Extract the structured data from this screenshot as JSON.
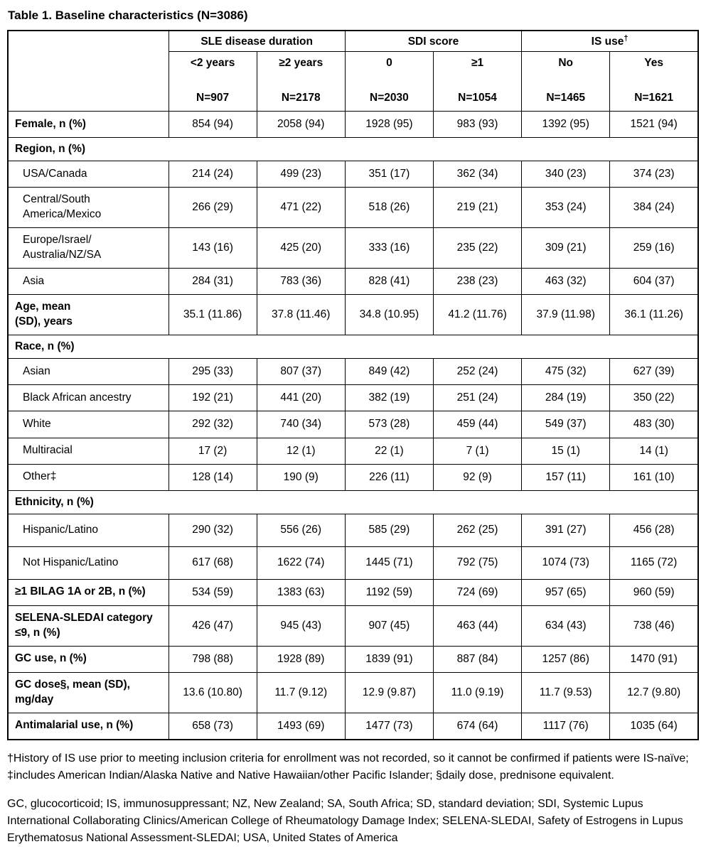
{
  "page": {
    "title": "Table 1. Baseline characteristics (N=3086)"
  },
  "table": {
    "col_groups": [
      {
        "label": "SLE disease duration",
        "sup": ""
      },
      {
        "label": "SDI score",
        "sup": ""
      },
      {
        "label": "IS use",
        "sup": "†"
      }
    ],
    "columns": [
      {
        "sub": "<2 years",
        "n": "N=907"
      },
      {
        "sub": "≥2 years",
        "n": "N=2178"
      },
      {
        "sub": "0",
        "n": "N=2030"
      },
      {
        "sub": "≥1",
        "n": "N=1054"
      },
      {
        "sub": "No",
        "n": "N=1465"
      },
      {
        "sub": "Yes",
        "n": "N=1621"
      }
    ],
    "rows": [
      {
        "label": "Female, n (%)",
        "bold": true,
        "values": [
          "854 (94)",
          "2058 (94)",
          "1928 (95)",
          "983 (93)",
          "1392 (95)",
          "1521 (94)"
        ]
      },
      {
        "label": "Region, n (%)",
        "section": true
      },
      {
        "label": "USA/Canada",
        "indent": true,
        "values": [
          "214 (24)",
          "499 (23)",
          "351 (17)",
          "362 (34)",
          "340 (23)",
          "374 (23)"
        ]
      },
      {
        "label": "Central/South\nAmerica/Mexico",
        "indent": true,
        "values": [
          "266 (29)",
          "471 (22)",
          "518 (26)",
          "219 (21)",
          "353 (24)",
          "384 (24)"
        ]
      },
      {
        "label": "Europe/Israel/\nAustralia/NZ/SA",
        "indent": true,
        "values": [
          "143 (16)",
          "425 (20)",
          "333 (16)",
          "235 (22)",
          "309 (21)",
          "259 (16)"
        ]
      },
      {
        "label": "Asia",
        "indent": true,
        "values": [
          "284 (31)",
          "783 (36)",
          "828 (41)",
          "238 (23)",
          "463 (32)",
          "604 (37)"
        ]
      },
      {
        "label": "Age, mean\n(SD), years",
        "bold": true,
        "values": [
          "35.1 (11.86)",
          "37.8 (11.46)",
          "34.8 (10.95)",
          "41.2 (11.76)",
          "37.9 (11.98)",
          "36.1 (11.26)"
        ]
      },
      {
        "label": "Race, n (%)",
        "section": true
      },
      {
        "label": "Asian",
        "indent": true,
        "values": [
          "295 (33)",
          "807 (37)",
          "849 (42)",
          "252 (24)",
          "475 (32)",
          "627 (39)"
        ]
      },
      {
        "label": "Black African ancestry",
        "indent": true,
        "values": [
          "192 (21)",
          "441 (20)",
          "382 (19)",
          "251 (24)",
          "284 (19)",
          "350 (22)"
        ]
      },
      {
        "label": "White",
        "indent": true,
        "values": [
          "292 (32)",
          "740 (34)",
          "573 (28)",
          "459 (44)",
          "549 (37)",
          "483 (30)"
        ]
      },
      {
        "label": "Multiracial",
        "indent": true,
        "values": [
          "17 (2)",
          "12 (1)",
          "22 (1)",
          "7 (1)",
          "15 (1)",
          "14 (1)"
        ]
      },
      {
        "label": "Other‡",
        "indent": true,
        "values": [
          "128 (14)",
          "190 (9)",
          "226 (11)",
          "92 (9)",
          "157 (11)",
          "161 (10)"
        ]
      },
      {
        "label": "Ethnicity, n (%)",
        "section": true
      },
      {
        "label": "Hispanic/Latino",
        "indent": true,
        "tall": true,
        "values": [
          "290 (32)",
          "556 (26)",
          "585 (29)",
          "262 (25)",
          "391 (27)",
          "456 (28)"
        ]
      },
      {
        "label": "Not Hispanic/Latino",
        "indent": true,
        "tall": true,
        "values": [
          "617 (68)",
          "1622 (74)",
          "1445 (71)",
          "792 (75)",
          "1074 (73)",
          "1165 (72)"
        ]
      },
      {
        "label": "≥1 BILAG 1A or 2B, n (%)",
        "bold": true,
        "values": [
          "534 (59)",
          "1383 (63)",
          "1192 (59)",
          "724 (69)",
          "957 (65)",
          "960 (59)"
        ]
      },
      {
        "label": "SELENA-SLEDAI category\n≤9, n (%)",
        "bold": true,
        "values": [
          "426 (47)",
          "945 (43)",
          "907 (45)",
          "463 (44)",
          "634 (43)",
          "738 (46)"
        ]
      },
      {
        "label": "GC use, n (%)",
        "bold": true,
        "values": [
          "798 (88)",
          "1928 (89)",
          "1839 (91)",
          "887 (84)",
          "1257 (86)",
          "1470 (91)"
        ]
      },
      {
        "label": "GC dose§, mean (SD),\nmg/day",
        "bold": true,
        "values": [
          "13.6 (10.80)",
          "11.7 (9.12)",
          "12.9 (9.87)",
          "11.0 (9.19)",
          "11.7 (9.53)",
          "12.7 (9.80)"
        ]
      },
      {
        "label": "Antimalarial use, n (%)",
        "bold": true,
        "values": [
          "658 (73)",
          "1493 (69)",
          "1477 (73)",
          "674 (64)",
          "1117 (76)",
          "1035 (64)"
        ]
      }
    ]
  },
  "footnotes": {
    "symbols": "†History of IS use prior to meeting inclusion criteria for enrollment was not recorded, so it cannot be confirmed if patients were IS-naïve; ‡includes American Indian/Alaska Native and Native Hawaiian/other Pacific Islander; §daily dose, prednisone equivalent.",
    "abbreviations": "GC, glucocorticoid; IS, immunosuppressant; NZ, New Zealand; SA, South Africa; SD, standard deviation; SDI, Systemic Lupus International Collaborating Clinics/American College of Rheumatology Damage Index; SELENA-SLEDAI, Safety of Estrogens in Lupus Erythematosus National Assessment-SLEDAI; USA, United States of America"
  }
}
